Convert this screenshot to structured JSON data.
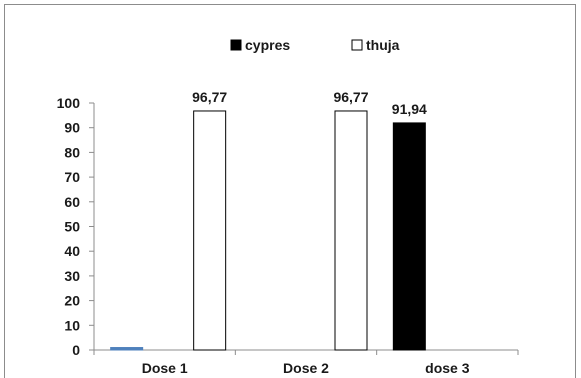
{
  "chart_data": {
    "type": "bar",
    "categories": [
      "Dose 1",
      "Dose 2",
      "dose 3"
    ],
    "series": [
      {
        "name": "cypres",
        "values": [
          1,
          0,
          91.94
        ],
        "value_labels": [
          "",
          "",
          "91,94"
        ],
        "bar_colors": [
          "#4f81bd",
          "#000000",
          "#000000"
        ]
      },
      {
        "name": "thuja",
        "values": [
          96.77,
          96.77,
          0
        ],
        "value_labels": [
          "96,77",
          "96,77",
          ""
        ],
        "bar_colors": [
          "#ffffff",
          "#ffffff",
          "#ffffff"
        ]
      }
    ],
    "ylim": [
      0,
      100
    ],
    "yticks": [
      "0",
      "10",
      "20",
      "30",
      "40",
      "50",
      "60",
      "70",
      "80",
      "90",
      "100"
    ],
    "title": "",
    "xlabel": "",
    "ylabel": "",
    "grid": false,
    "legend_position": "top-center"
  }
}
